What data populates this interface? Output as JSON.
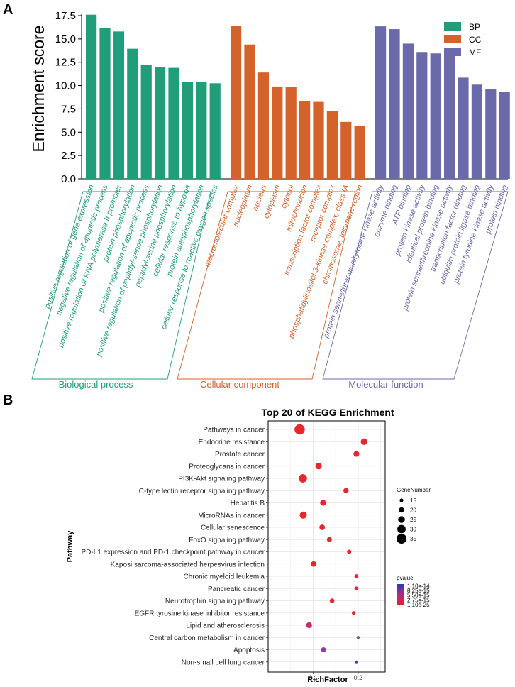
{
  "panel_a": {
    "label": "A",
    "chart_data": {
      "type": "bar",
      "ylabel": "Enrichment score",
      "ylim": [
        0,
        17.5
      ],
      "yticks": [
        "0.0",
        "2.5",
        "5.0",
        "7.5",
        "10.0",
        "12.5",
        "15.0",
        "17.5"
      ],
      "legend_position": "top-right",
      "series": [
        {
          "name": "BP",
          "group_label": "Biological process",
          "color": "#1f9e79",
          "categories": [
            "positive regulation of gene expression",
            "negative regulation of apoptotic process",
            "positive regulation of RNA polymerase II promoter",
            "protein phosphorylation",
            "positive regulation of apoptotic process",
            "positive regulation of peptidyl-serine phosphorylation",
            "peptidyl-serine phosphorylation",
            "cellular response to hypoxia",
            "protein autophosphorylation",
            "cellular response to reactive oxygen species"
          ],
          "values": [
            17.6,
            16.2,
            15.8,
            13.95,
            12.2,
            12.0,
            11.9,
            10.4,
            10.35,
            10.25
          ]
        },
        {
          "name": "CC",
          "group_label": "Cellular component",
          "color": "#d5622a",
          "categories": [
            "macromolecular complex",
            "nucleoplasm",
            "nucleus",
            "cytoplasm",
            "cytosol",
            "mitochondrion",
            "transcription factor complex",
            "receptor complex",
            "phosphatidylinositol 3-kinase complex, class IA",
            "chromosome, telomeric region"
          ],
          "values": [
            16.4,
            14.4,
            11.4,
            9.9,
            9.85,
            8.3,
            8.25,
            7.3,
            6.1,
            5.7
          ]
        },
        {
          "name": "MF",
          "group_label": "Molecular function",
          "color": "#6a6aab",
          "categories": [
            "protein serine/threonine/tyrosine kinase activity",
            "enzyme binding",
            "ATP binding",
            "protein kinase activity",
            "identical protein binding",
            "protein serine/threonine kinase activity",
            "transcription factor binding",
            "ubiquitin protein ligase binding",
            "protein tyrosine kinase activity",
            "protein binding"
          ],
          "values": [
            16.35,
            16.05,
            14.5,
            13.6,
            13.45,
            13.35,
            10.85,
            10.1,
            9.6,
            9.35
          ]
        }
      ]
    }
  },
  "panel_b": {
    "label": "B",
    "chart_data": {
      "type": "scatter",
      "title": "Top 20 of KEGG Enrichment",
      "xlabel": "RichFactor",
      "ylabel": "Pathway",
      "xlim": [
        0.0,
        0.26
      ],
      "xticks": [
        {
          "value": 0.1,
          "label": "0.1"
        },
        {
          "value": 0.2,
          "label": "0.2"
        }
      ],
      "pathways": [
        "Pathways in cancer",
        "Endocrine resistance",
        "Prostate cancer",
        "Proteoglycans in cancer",
        "PI3K-Akt signaling pathway",
        "C-type lectin receptor signaling pathway",
        "Hepatitis B",
        "MicroRNAs in cancer",
        "Cellular senescence",
        "FoxO signaling pathway",
        "PD-L1 expression and PD-1 checkpoint pathway in cancer",
        "Kaposi sarcoma-associated herpesvirus infection",
        "Chronic myeloid leukemia",
        "Pancreatic cancer",
        "Neurotrophin signaling pathway",
        "EGFR tyrosine kinase inhibitor resistance",
        "Lipid and atherosclerosis",
        "Central carbon metabolism in cancer",
        "Apoptosis",
        "Non-small cell lung cancer"
      ],
      "rich_factor": [
        0.07,
        0.213,
        0.196,
        0.112,
        0.077,
        0.173,
        0.122,
        0.078,
        0.12,
        0.136,
        0.18,
        0.101,
        0.196,
        0.196,
        0.142,
        0.19,
        0.091,
        0.2,
        0.123,
        0.196
      ],
      "gene_number": [
        36,
        24,
        22,
        24,
        30,
        20,
        22,
        26,
        21,
        19,
        17,
        21,
        16,
        16,
        18,
        15,
        22,
        13,
        19,
        12
      ],
      "color_group": [
        "red",
        "red",
        "red",
        "red",
        "red",
        "red",
        "red",
        "red",
        "red",
        "red",
        "red",
        "red",
        "red",
        "red",
        "red",
        "red",
        "magenta",
        "purple",
        "purple",
        "blue"
      ],
      "size_legend": {
        "title": "GeneNumber",
        "values": [
          15,
          20,
          25,
          30,
          35
        ]
      },
      "color_legend": {
        "title": "pvalue",
        "labels": [
          "1.10e-14",
          "8.25e-15",
          "5.50e-15",
          "2.75e-15",
          "1.10e-25"
        ],
        "top_color": "#2b3cb0",
        "bottom_color": "#ee1c25"
      },
      "colors": {
        "red": "#e8262b",
        "magenta": "#cc2a6a",
        "purple": "#8b3fa0",
        "blue": "#2f47b4"
      }
    }
  }
}
